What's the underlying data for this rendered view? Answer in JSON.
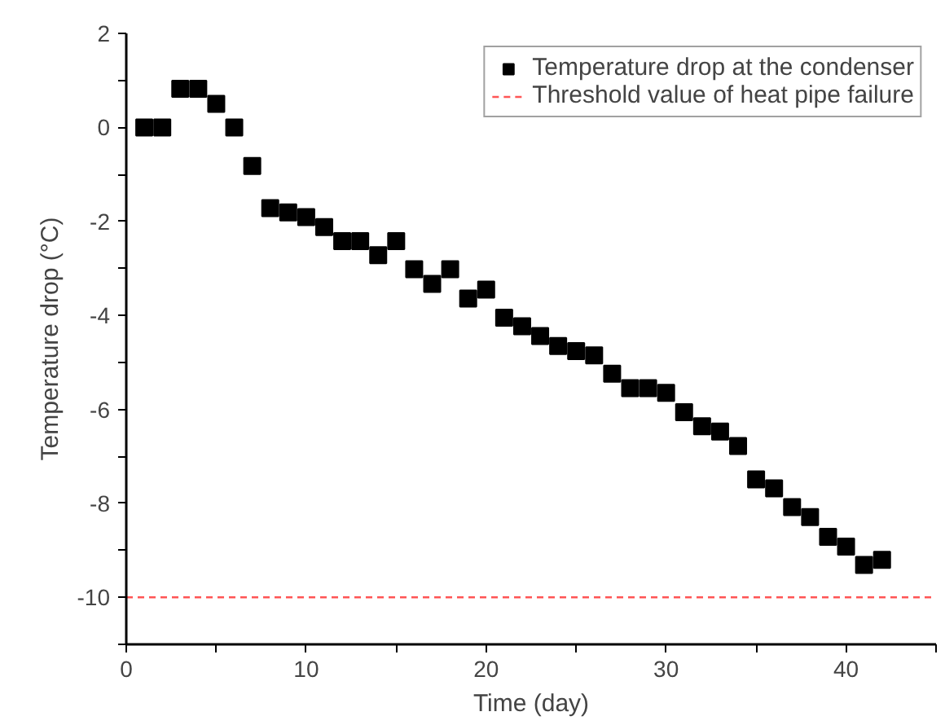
{
  "chart_data": {
    "type": "scatter",
    "xlabel": "Time (day)",
    "ylabel": "Temperature drop (°C)",
    "x": [
      1,
      2,
      3,
      4,
      5,
      6,
      7,
      8,
      9,
      10,
      11,
      12,
      13,
      14,
      15,
      16,
      17,
      18,
      19,
      20,
      21,
      22,
      23,
      24,
      25,
      26,
      27,
      28,
      29,
      30,
      31,
      32,
      33,
      34,
      35,
      36,
      37,
      38,
      39,
      40,
      41,
      42
    ],
    "series": [
      {
        "name": "Temperature drop at the condenser",
        "color": "#000000",
        "values": [
          0,
          0,
          0.82,
          0.82,
          0.5,
          0,
          -0.82,
          -1.72,
          -1.81,
          -1.91,
          -2.12,
          -2.42,
          -2.42,
          -2.72,
          -2.42,
          -3.02,
          -3.33,
          -3.02,
          -3.64,
          -3.45,
          -4.05,
          -4.23,
          -4.44,
          -4.65,
          -4.76,
          -4.85,
          -5.24,
          -5.55,
          -5.55,
          -5.65,
          -6.06,
          -6.36,
          -6.47,
          -6.78,
          -7.49,
          -7.68,
          -8.08,
          -8.29,
          -8.71,
          -8.92,
          -9.31,
          -9.2
        ]
      }
    ],
    "ref_lines": [
      {
        "axis": "y",
        "value": -10,
        "label": "Threshold value of heat pipe failure",
        "color": "#ff5555",
        "line_style": "dashed"
      }
    ],
    "xlim": [
      0,
      45
    ],
    "ylim": [
      -11,
      2
    ],
    "xticks": [
      0,
      {
        "value": 5,
        "label": null
      },
      10,
      {
        "value": 15,
        "label": null
      },
      20,
      {
        "value": 25,
        "label": null
      },
      30,
      {
        "value": 35,
        "label": null
      },
      40,
      {
        "value": 45,
        "label": null
      }
    ],
    "yticks": [
      {
        "value": -11,
        "label": null
      },
      -10,
      {
        "value": -9,
        "label": null
      },
      -8,
      {
        "value": -7,
        "label": null
      },
      -6,
      {
        "value": -5,
        "label": null
      },
      -4,
      {
        "value": -3,
        "label": null
      },
      -2,
      {
        "value": -1,
        "label": null
      },
      0,
      {
        "value": 1,
        "label": null
      },
      2
    ],
    "marker": "square",
    "grid": false,
    "legend": "top right"
  }
}
